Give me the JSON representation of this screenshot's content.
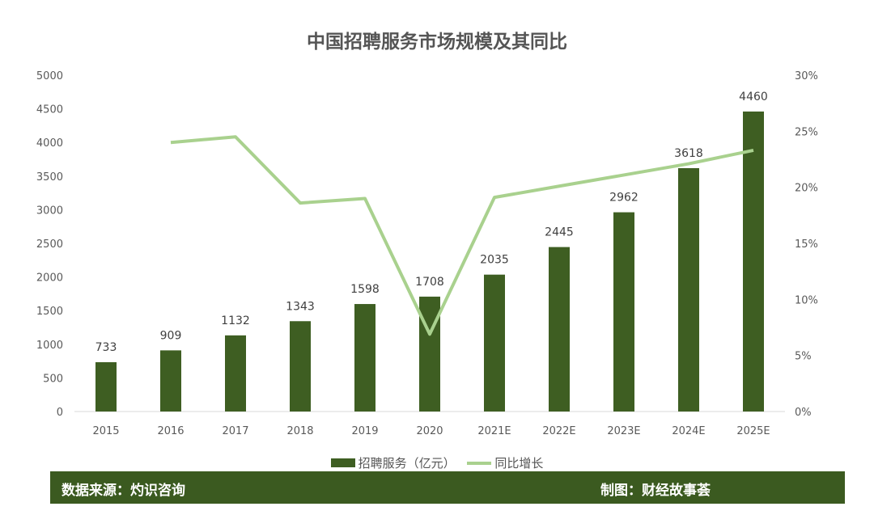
{
  "chart_data": {
    "type": "bar+line",
    "title": "中国招聘服务市场规模及其同比",
    "categories": [
      "2015",
      "2016",
      "2017",
      "2018",
      "2019",
      "2020",
      "2021E",
      "2022E",
      "2023E",
      "2024E",
      "2025E"
    ],
    "series": [
      {
        "name": "招聘服务（亿元）",
        "type": "bar",
        "axis": "left",
        "color": "#3e5e22",
        "values": [
          733,
          909,
          1132,
          1343,
          1598,
          1708,
          2035,
          2445,
          2962,
          3618,
          4460
        ]
      },
      {
        "name": "同比增长",
        "type": "line",
        "axis": "right",
        "color": "#a9d18e",
        "values": [
          null,
          24.0,
          24.5,
          18.6,
          19.0,
          6.9,
          19.1,
          20.1,
          21.1,
          22.1,
          23.3
        ]
      }
    ],
    "y_left": {
      "range": [
        0,
        5000
      ],
      "ticks": [
        "0",
        "500",
        "1000",
        "1500",
        "2000",
        "2500",
        "3000",
        "3500",
        "4000",
        "4500",
        "5000"
      ]
    },
    "y_right": {
      "range": [
        0,
        30
      ],
      "ticks": [
        "0%",
        "5%",
        "10%",
        "15%",
        "20%",
        "25%",
        "30%"
      ]
    },
    "grid": false,
    "legend": "bottom"
  },
  "footer": {
    "source": "数据来源：灼识咨询",
    "credit": "制图：财经故事荟"
  }
}
